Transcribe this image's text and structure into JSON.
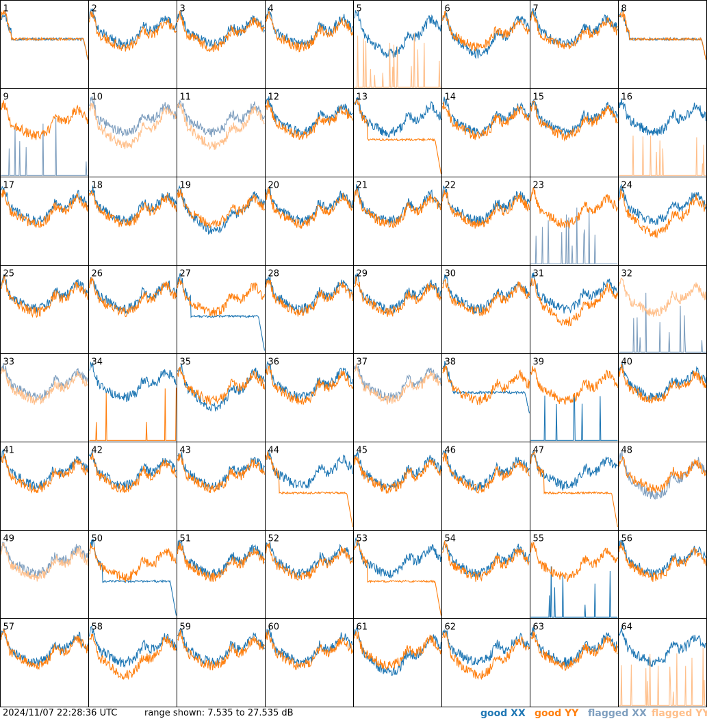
{
  "footer": {
    "timestamp": "2024/11/07 22:28:36 UTC",
    "range_text": "range shown: 7.535 to 27.535 dB"
  },
  "legend": [
    {
      "label": "good XX",
      "color": "#1f77b4"
    },
    {
      "label": "good YY",
      "color": "#ff7f0e"
    },
    {
      "label": "flagged XX",
      "color": "#7f9fbf"
    },
    {
      "label": "flagged YY",
      "color": "#ffbf8a"
    }
  ],
  "chart_data": {
    "type": "line",
    "title": "",
    "grid_rows": 8,
    "grid_cols": 8,
    "y_range_db": [
      7.535,
      27.535
    ],
    "panels": [
      {
        "id": "1",
        "xx": "good",
        "yy": "good",
        "xx_shape": "flat",
        "yy_shape": "flat"
      },
      {
        "id": "2",
        "xx": "good",
        "yy": "good",
        "xx_shape": "normal",
        "yy_shape": "normal"
      },
      {
        "id": "3",
        "xx": "good",
        "yy": "good",
        "xx_shape": "normal",
        "yy_shape": "normal"
      },
      {
        "id": "4",
        "xx": "good",
        "yy": "good",
        "xx_shape": "normal",
        "yy_shape": "normal"
      },
      {
        "id": "5",
        "xx": "good",
        "yy": "flagged",
        "xx_shape": "deep",
        "yy_shape": "spikes"
      },
      {
        "id": "6",
        "xx": "good",
        "yy": "good",
        "xx_shape": "deep",
        "yy_shape": "normal"
      },
      {
        "id": "7",
        "xx": "good",
        "yy": "good",
        "xx_shape": "normal",
        "yy_shape": "normal"
      },
      {
        "id": "8",
        "xx": "good",
        "yy": "good",
        "xx_shape": "flat",
        "yy_shape": "flat"
      },
      {
        "id": "9",
        "xx": "flagged",
        "yy": "good",
        "xx_shape": "spikes",
        "yy_shape": "normal"
      },
      {
        "id": "10",
        "xx": "flagged",
        "yy": "flagged",
        "xx_shape": "normal",
        "yy_shape": "deep"
      },
      {
        "id": "11",
        "xx": "flagged",
        "yy": "flagged",
        "xx_shape": "normal",
        "yy_shape": "deep"
      },
      {
        "id": "12",
        "xx": "good",
        "yy": "good",
        "xx_shape": "normal",
        "yy_shape": "normal"
      },
      {
        "id": "13",
        "xx": "good",
        "yy": "good",
        "xx_shape": "normal",
        "yy_shape": "drop"
      },
      {
        "id": "14",
        "xx": "good",
        "yy": "good",
        "xx_shape": "normal",
        "yy_shape": "normal"
      },
      {
        "id": "15",
        "xx": "good",
        "yy": "good",
        "xx_shape": "normal",
        "yy_shape": "normal"
      },
      {
        "id": "16",
        "xx": "good",
        "yy": "flagged",
        "xx_shape": "normal",
        "yy_shape": "spikes"
      },
      {
        "id": "17",
        "xx": "good",
        "yy": "good",
        "xx_shape": "normal",
        "yy_shape": "normal"
      },
      {
        "id": "18",
        "xx": "good",
        "yy": "good",
        "xx_shape": "normal",
        "yy_shape": "normal"
      },
      {
        "id": "19",
        "xx": "good",
        "yy": "good",
        "xx_shape": "deep",
        "yy_shape": "normal"
      },
      {
        "id": "20",
        "xx": "good",
        "yy": "good",
        "xx_shape": "normal",
        "yy_shape": "normal"
      },
      {
        "id": "21",
        "xx": "good",
        "yy": "good",
        "xx_shape": "normal",
        "yy_shape": "normal"
      },
      {
        "id": "22",
        "xx": "good",
        "yy": "good",
        "xx_shape": "normal",
        "yy_shape": "normal"
      },
      {
        "id": "23",
        "xx": "flagged",
        "yy": "good",
        "xx_shape": "spikes",
        "yy_shape": "normal"
      },
      {
        "id": "24",
        "xx": "good",
        "yy": "good",
        "xx_shape": "normal",
        "yy_shape": "deep"
      },
      {
        "id": "25",
        "xx": "good",
        "yy": "good",
        "xx_shape": "normal",
        "yy_shape": "normal"
      },
      {
        "id": "26",
        "xx": "good",
        "yy": "good",
        "xx_shape": "normal",
        "yy_shape": "normal"
      },
      {
        "id": "27",
        "xx": "good",
        "yy": "good",
        "xx_shape": "drop",
        "yy_shape": "normal"
      },
      {
        "id": "28",
        "xx": "good",
        "yy": "good",
        "xx_shape": "normal",
        "yy_shape": "normal"
      },
      {
        "id": "29",
        "xx": "good",
        "yy": "good",
        "xx_shape": "normal",
        "yy_shape": "normal"
      },
      {
        "id": "30",
        "xx": "good",
        "yy": "good",
        "xx_shape": "normal",
        "yy_shape": "normal"
      },
      {
        "id": "31",
        "xx": "good",
        "yy": "good",
        "xx_shape": "normal",
        "yy_shape": "deep"
      },
      {
        "id": "32",
        "xx": "flagged",
        "yy": "flagged",
        "xx_shape": "spikes",
        "yy_shape": "normal"
      },
      {
        "id": "33",
        "xx": "flagged",
        "yy": "flagged",
        "xx_shape": "normal",
        "yy_shape": "normal"
      },
      {
        "id": "34",
        "xx": "good",
        "yy": "good",
        "xx_shape": "normal",
        "yy_shape": "spikes"
      },
      {
        "id": "35",
        "xx": "good",
        "yy": "good",
        "xx_shape": "deep",
        "yy_shape": "normal"
      },
      {
        "id": "36",
        "xx": "good",
        "yy": "good",
        "xx_shape": "normal",
        "yy_shape": "normal"
      },
      {
        "id": "37",
        "xx": "flagged",
        "yy": "flagged",
        "xx_shape": "normal",
        "yy_shape": "normal"
      },
      {
        "id": "38",
        "xx": "good",
        "yy": "good",
        "xx_shape": "flat",
        "yy_shape": "normal"
      },
      {
        "id": "39",
        "xx": "good",
        "yy": "good",
        "xx_shape": "spikes",
        "yy_shape": "normal"
      },
      {
        "id": "40",
        "xx": "good",
        "yy": "good",
        "xx_shape": "normal",
        "yy_shape": "normal"
      },
      {
        "id": "41",
        "xx": "good",
        "yy": "good",
        "xx_shape": "normal",
        "yy_shape": "normal"
      },
      {
        "id": "42",
        "xx": "good",
        "yy": "good",
        "xx_shape": "normal",
        "yy_shape": "normal"
      },
      {
        "id": "43",
        "xx": "good",
        "yy": "good",
        "xx_shape": "normal",
        "yy_shape": "normal"
      },
      {
        "id": "44",
        "xx": "good",
        "yy": "good",
        "xx_shape": "normal",
        "yy_shape": "drop"
      },
      {
        "id": "45",
        "xx": "good",
        "yy": "good",
        "xx_shape": "normal",
        "yy_shape": "normal"
      },
      {
        "id": "46",
        "xx": "good",
        "yy": "good",
        "xx_shape": "normal",
        "yy_shape": "normal"
      },
      {
        "id": "47",
        "xx": "good",
        "yy": "good",
        "xx_shape": "normal",
        "yy_shape": "drop"
      },
      {
        "id": "48",
        "xx": "flagged",
        "yy": "good",
        "xx_shape": "deep",
        "yy_shape": "normal"
      },
      {
        "id": "49",
        "xx": "flagged",
        "yy": "flagged",
        "xx_shape": "normal",
        "yy_shape": "normal"
      },
      {
        "id": "50",
        "xx": "good",
        "yy": "good",
        "xx_shape": "drop",
        "yy_shape": "normal"
      },
      {
        "id": "51",
        "xx": "good",
        "yy": "good",
        "xx_shape": "normal",
        "yy_shape": "normal"
      },
      {
        "id": "52",
        "xx": "good",
        "yy": "good",
        "xx_shape": "normal",
        "yy_shape": "normal"
      },
      {
        "id": "53",
        "xx": "good",
        "yy": "good",
        "xx_shape": "normal",
        "yy_shape": "drop"
      },
      {
        "id": "54",
        "xx": "good",
        "yy": "good",
        "xx_shape": "normal",
        "yy_shape": "normal"
      },
      {
        "id": "55",
        "xx": "good",
        "yy": "good",
        "xx_shape": "spikes",
        "yy_shape": "normal"
      },
      {
        "id": "56",
        "xx": "good",
        "yy": "good",
        "xx_shape": "normal",
        "yy_shape": "normal"
      },
      {
        "id": "57",
        "xx": "good",
        "yy": "good",
        "xx_shape": "normal",
        "yy_shape": "normal"
      },
      {
        "id": "58",
        "xx": "good",
        "yy": "good",
        "xx_shape": "normal",
        "yy_shape": "deep"
      },
      {
        "id": "59",
        "xx": "good",
        "yy": "good",
        "xx_shape": "normal",
        "yy_shape": "normal"
      },
      {
        "id": "60",
        "xx": "good",
        "yy": "good",
        "xx_shape": "normal",
        "yy_shape": "normal"
      },
      {
        "id": "61",
        "xx": "good",
        "yy": "good",
        "xx_shape": "deep",
        "yy_shape": "normal"
      },
      {
        "id": "62",
        "xx": "good",
        "yy": "good",
        "xx_shape": "normal",
        "yy_shape": "deep"
      },
      {
        "id": "63",
        "xx": "good",
        "yy": "good",
        "xx_shape": "normal",
        "yy_shape": "normal"
      },
      {
        "id": "64",
        "xx": "good",
        "yy": "flagged",
        "xx_shape": "normal",
        "yy_shape": "spikes"
      }
    ]
  }
}
